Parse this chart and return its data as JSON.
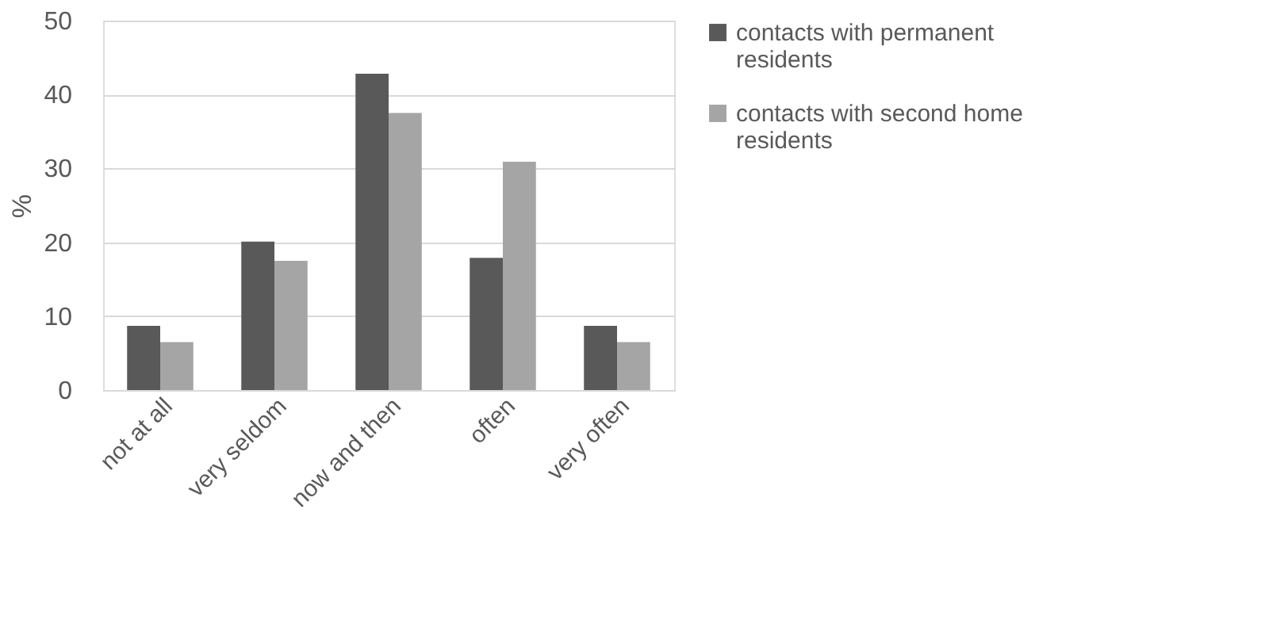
{
  "chart_data": {
    "type": "bar",
    "ylabel": "%",
    "categories": [
      "not at all",
      "very seldom",
      "now and then",
      "often",
      "very often"
    ],
    "series": [
      {
        "name": "contacts with permanent residents",
        "color": "#595959",
        "values": [
          8.7,
          20.1,
          42.8,
          17.9,
          8.7
        ]
      },
      {
        "name": "contacts with second home residents",
        "color": "#a5a5a5",
        "values": [
          6.5,
          17.5,
          37.5,
          30.9,
          6.5
        ]
      }
    ],
    "ylim": [
      0,
      50
    ],
    "yticks": [
      0,
      10,
      20,
      30,
      40,
      50
    ],
    "grid": "y",
    "legend": "right"
  }
}
